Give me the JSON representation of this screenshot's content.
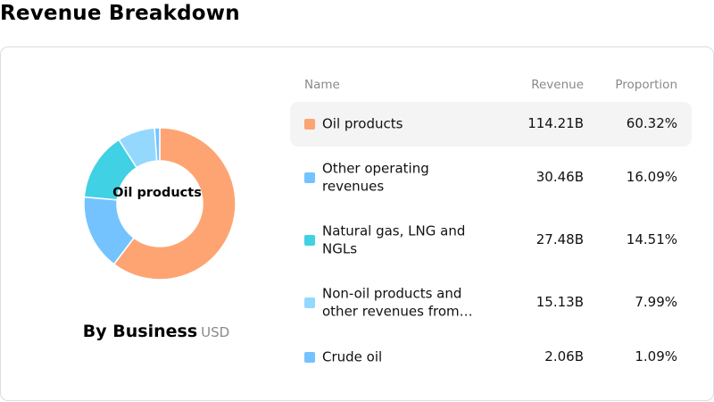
{
  "page_title": "Revenue Breakdown",
  "chart": {
    "center_label": "Oil products",
    "legend_title": "By Business",
    "currency": "USD",
    "headers": {
      "name": "Name",
      "revenue": "Revenue",
      "proportion": "Proportion"
    }
  },
  "chart_data": {
    "type": "pie",
    "title": "Revenue Breakdown",
    "subtitle": "By Business",
    "unit": "USD",
    "donut": true,
    "categories": [
      "Oil products",
      "Other operating revenues",
      "Natural gas, LNG and NGLs",
      "Non-oil products and other revenues from…",
      "Crude oil"
    ],
    "values": [
      114.21,
      30.46,
      27.48,
      15.13,
      2.06
    ],
    "revenue_labels": [
      "114.21B",
      "30.46B",
      "27.48B",
      "15.13B",
      "2.06B"
    ],
    "proportions": [
      "60.32%",
      "16.09%",
      "14.51%",
      "7.99%",
      "1.09%"
    ],
    "colors": [
      "#fda472",
      "#74c3fe",
      "#40d1e4",
      "#94d8fd",
      "#74c3fe"
    ],
    "highlighted": 0
  }
}
